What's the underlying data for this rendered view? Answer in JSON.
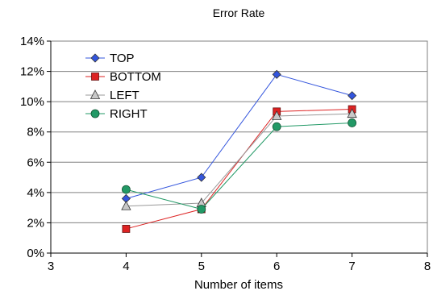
{
  "chart_data": {
    "type": "line",
    "title": "Error Rate",
    "xlabel": "Number of items",
    "ylabel": "",
    "xlim": [
      3,
      8
    ],
    "ylim": [
      0,
      14
    ],
    "x_ticks": [
      "3",
      "4",
      "5",
      "6",
      "7",
      "8"
    ],
    "y_ticks": [
      "0%",
      "2%",
      "4%",
      "6%",
      "8%",
      "10%",
      "12%",
      "14%"
    ],
    "grid": "horizontal",
    "legend_position": "top-left",
    "x": [
      4,
      5,
      6,
      7
    ],
    "series": [
      {
        "name": "TOP",
        "values": [
          3.6,
          5.0,
          11.8,
          10.4
        ],
        "color": "#3355dd",
        "marker": "diamond"
      },
      {
        "name": "BOTTOM",
        "values": [
          1.6,
          2.9,
          9.35,
          9.5
        ],
        "color": "#dd2222",
        "marker": "square"
      },
      {
        "name": "LEFT",
        "values": [
          3.1,
          3.3,
          9.05,
          9.2
        ],
        "color": "#999999",
        "marker": "triangle"
      },
      {
        "name": "RIGHT",
        "values": [
          4.2,
          2.9,
          8.35,
          8.6
        ],
        "color": "#229966",
        "marker": "circle"
      }
    ]
  }
}
